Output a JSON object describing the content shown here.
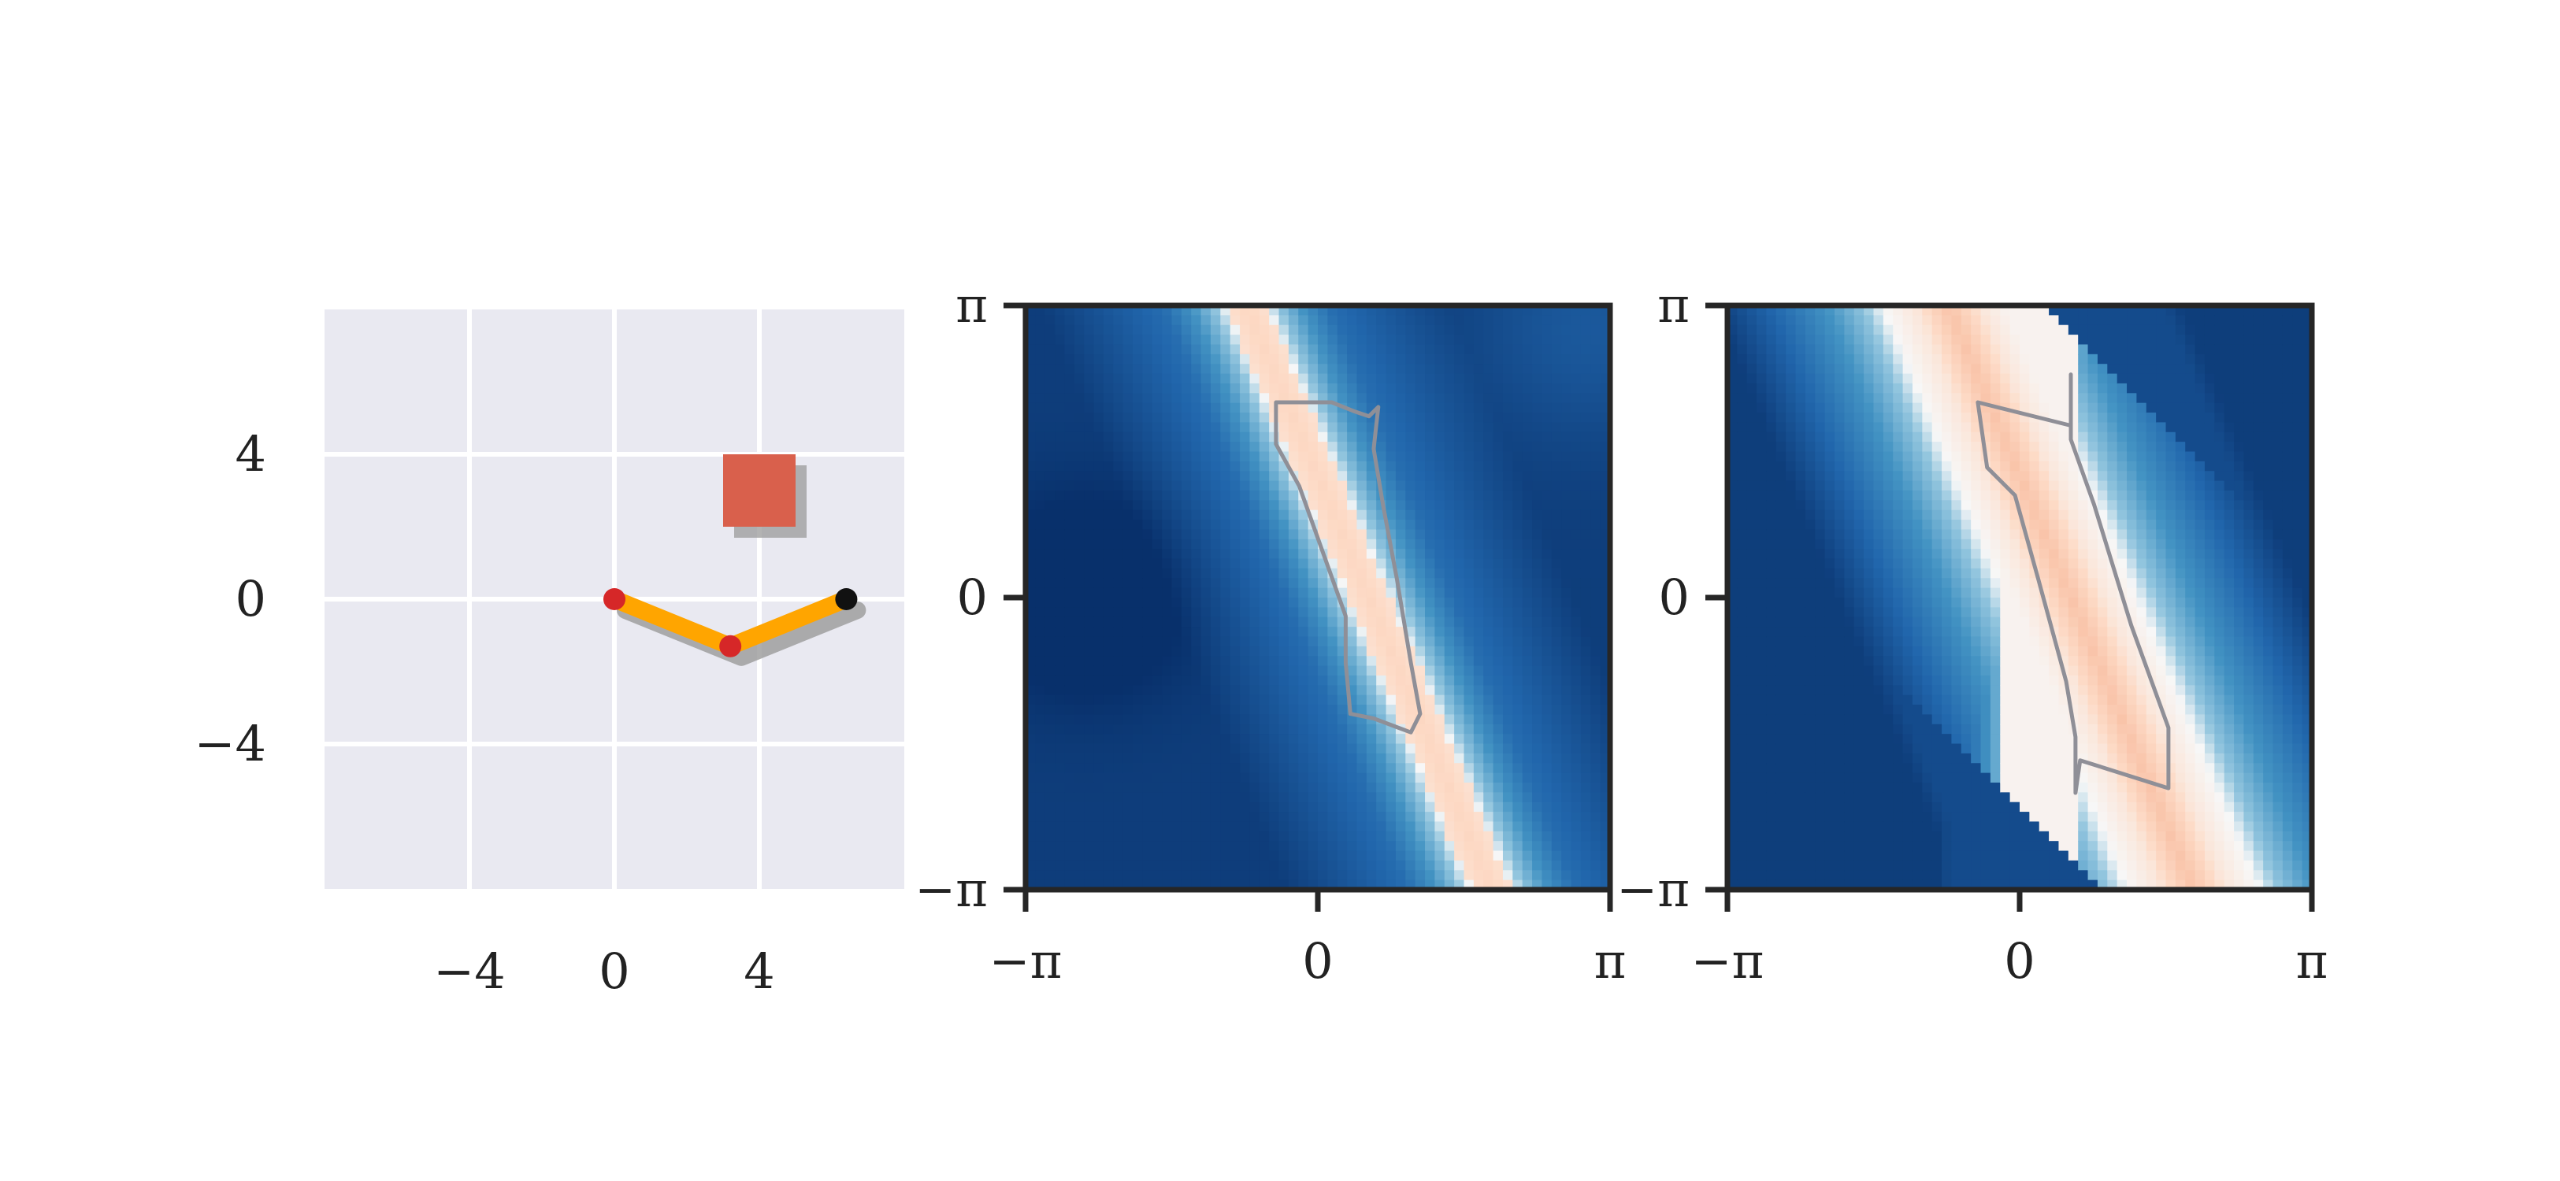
{
  "chart_data": [
    {
      "type": "scatter",
      "panel": "arm-workspace",
      "xlim": [
        -8,
        8
      ],
      "ylim": [
        -8,
        8
      ],
      "grid": true,
      "background": "#e9e9f1",
      "xticks": [
        -4,
        0,
        4
      ],
      "yticks": [
        -4,
        0,
        4
      ],
      "xtick_labels": [
        "−4",
        "0",
        "4"
      ],
      "ytick_labels": [
        "−4",
        "0",
        "4"
      ],
      "arm": {
        "joints": [
          [
            0,
            0
          ],
          [
            3.2,
            -1.3
          ]
        ],
        "end_effector": [
          6.4,
          0.0
        ],
        "link_color": "#ffa500",
        "joint_color": "#d62728",
        "end_color": "#111111",
        "shadow_color": "#9a9a9a"
      },
      "target": {
        "x": [
          3,
          5
        ],
        "y": [
          2,
          4
        ],
        "color": "#d9604c"
      }
    },
    {
      "type": "heatmap",
      "panel": "joint-space-left",
      "xlim": [
        "−π",
        "π"
      ],
      "ylim": [
        "−π",
        "π"
      ],
      "xtick_labels": [
        "−π",
        "0",
        "π"
      ],
      "ytick_labels": [
        "−π",
        "0",
        "π"
      ],
      "colormap": "RdBu_r",
      "colors": {
        "deep": "#08306b",
        "mid": "#f7f7f7",
        "hot": "#f4a582",
        "contour": "#8f8f97"
      },
      "contour_level": "region",
      "contour_vertices": [
        [
          0.15,
          2.1
        ],
        [
          0.4,
          2.0
        ],
        [
          0.55,
          1.95
        ],
        [
          0.65,
          2.05
        ],
        [
          0.6,
          1.6
        ],
        [
          0.7,
          1.0
        ],
        [
          0.85,
          0.2
        ],
        [
          1.0,
          -0.7
        ],
        [
          1.1,
          -1.25
        ],
        [
          1.0,
          -1.45
        ],
        [
          0.6,
          -1.3
        ],
        [
          0.35,
          -1.25
        ],
        [
          0.3,
          -0.7
        ],
        [
          0.3,
          -0.2
        ],
        [
          0.05,
          0.5
        ],
        [
          -0.2,
          1.2
        ],
        [
          -0.45,
          1.65
        ],
        [
          -0.45,
          2.1
        ],
        [
          0.15,
          2.1
        ]
      ]
    },
    {
      "type": "heatmap",
      "panel": "joint-space-right",
      "xlim": [
        "−π",
        "π"
      ],
      "ylim": [
        "−π",
        "π"
      ],
      "xtick_labels": [
        "−π",
        "0",
        "π"
      ],
      "ytick_labels": [
        "−π",
        "0",
        "π"
      ],
      "colormap": "RdBu_r",
      "colors": {
        "deep": "#08306b",
        "mid": "#f7f7f7",
        "hot": "#f4a582",
        "contour": "#8f8f97"
      },
      "contour_level": "region",
      "contour_vertices": [
        [
          -0.45,
          2.1
        ],
        [
          0.55,
          1.85
        ],
        [
          0.55,
          2.4
        ],
        [
          0.55,
          1.7
        ],
        [
          0.8,
          1.0
        ],
        [
          1.2,
          -0.3
        ],
        [
          1.6,
          -1.4
        ],
        [
          1.6,
          -2.05
        ],
        [
          0.65,
          -1.75
        ],
        [
          0.6,
          -2.1
        ],
        [
          0.6,
          -1.5
        ],
        [
          0.5,
          -0.9
        ],
        [
          0.2,
          0.2
        ],
        [
          -0.05,
          1.1
        ],
        [
          -0.35,
          1.4
        ],
        [
          -0.45,
          2.1
        ]
      ]
    }
  ]
}
